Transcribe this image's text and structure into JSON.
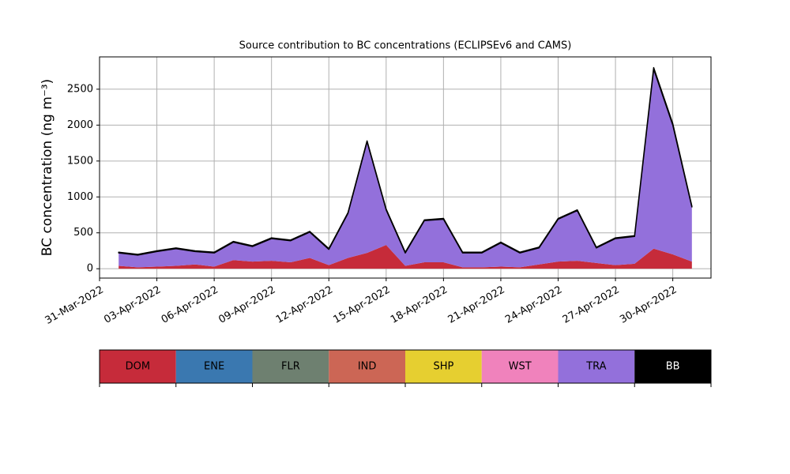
{
  "chart_data": {
    "type": "stacked_area",
    "title": "Source contribution to BC concentrations (ECLIPSEv6 and CAMS)",
    "y_label": "BC concentration (ng m⁻³)",
    "x": [
      "2022-04-01",
      "2022-04-02",
      "2022-04-03",
      "2022-04-04",
      "2022-04-05",
      "2022-04-06",
      "2022-04-07",
      "2022-04-08",
      "2022-04-09",
      "2022-04-10",
      "2022-04-11",
      "2022-04-12",
      "2022-04-13",
      "2022-04-14",
      "2022-04-15",
      "2022-04-16",
      "2022-04-17",
      "2022-04-18",
      "2022-04-19",
      "2022-04-20",
      "2022-04-21",
      "2022-04-22",
      "2022-04-23",
      "2022-04-24",
      "2022-04-25",
      "2022-04-26",
      "2022-04-27",
      "2022-04-28",
      "2022-04-29",
      "2022-04-30",
      "2022-05-01"
    ],
    "series": [
      {
        "name": "DOM",
        "color": "#c62b3a",
        "values": [
          40,
          20,
          30,
          40,
          60,
          30,
          120,
          100,
          110,
          90,
          150,
          50,
          150,
          220,
          330,
          40,
          90,
          90,
          20,
          20,
          30,
          20,
          60,
          100,
          110,
          80,
          50,
          70,
          280,
          200,
          100
        ]
      },
      {
        "name": "ENE",
        "color": "#3a78b0",
        "values": [
          0,
          0,
          0,
          0,
          0,
          0,
          0,
          0,
          0,
          0,
          0,
          0,
          0,
          0,
          0,
          0,
          0,
          0,
          0,
          0,
          0,
          0,
          0,
          0,
          0,
          0,
          0,
          0,
          0,
          0,
          0
        ]
      },
      {
        "name": "FLR",
        "color": "#6e8070",
        "values": [
          0,
          0,
          0,
          0,
          0,
          0,
          0,
          0,
          0,
          0,
          0,
          0,
          0,
          0,
          0,
          0,
          0,
          0,
          0,
          0,
          0,
          0,
          0,
          0,
          0,
          0,
          0,
          0,
          0,
          0,
          0
        ]
      },
      {
        "name": "IND",
        "color": "#cc6655",
        "values": [
          0,
          0,
          0,
          0,
          0,
          0,
          0,
          0,
          0,
          0,
          0,
          0,
          0,
          0,
          0,
          0,
          0,
          0,
          0,
          0,
          0,
          0,
          0,
          0,
          0,
          0,
          0,
          0,
          0,
          0,
          0
        ]
      },
      {
        "name": "SHP",
        "color": "#e6cf30",
        "values": [
          0,
          0,
          0,
          0,
          0,
          0,
          0,
          0,
          0,
          0,
          0,
          0,
          0,
          0,
          0,
          0,
          0,
          0,
          0,
          0,
          0,
          0,
          0,
          0,
          0,
          0,
          0,
          0,
          0,
          0,
          0
        ]
      },
      {
        "name": "WST",
        "color": "#f082bc",
        "values": [
          0,
          0,
          0,
          0,
          0,
          0,
          0,
          0,
          0,
          0,
          0,
          0,
          0,
          0,
          0,
          0,
          0,
          0,
          0,
          0,
          0,
          0,
          0,
          0,
          0,
          0,
          0,
          0,
          0,
          0,
          0
        ]
      },
      {
        "name": "TRA",
        "color": "#9370db",
        "values": [
          180,
          170,
          210,
          240,
          180,
          190,
          250,
          210,
          310,
          300,
          360,
          220,
          620,
          1550,
          490,
          180,
          580,
          600,
          200,
          200,
          330,
          200,
          230,
          590,
          700,
          210,
          370,
          380,
          2500,
          1800,
          760
        ]
      },
      {
        "name": "BB",
        "color": "#000000",
        "values": [
          10,
          10,
          10,
          10,
          10,
          10,
          10,
          10,
          10,
          10,
          10,
          10,
          10,
          10,
          10,
          10,
          10,
          10,
          10,
          10,
          10,
          10,
          10,
          10,
          10,
          10,
          10,
          10,
          20,
          20,
          10
        ]
      }
    ],
    "xlim": [
      "2022-03-31",
      "2022-05-02"
    ],
    "xticks": [
      {
        "value": "2022-03-31",
        "label": "31-Mar-2022"
      },
      {
        "value": "2022-04-03",
        "label": "03-Apr-2022"
      },
      {
        "value": "2022-04-06",
        "label": "06-Apr-2022"
      },
      {
        "value": "2022-04-09",
        "label": "09-Apr-2022"
      },
      {
        "value": "2022-04-12",
        "label": "12-Apr-2022"
      },
      {
        "value": "2022-04-15",
        "label": "15-Apr-2022"
      },
      {
        "value": "2022-04-18",
        "label": "18-Apr-2022"
      },
      {
        "value": "2022-04-21",
        "label": "21-Apr-2022"
      },
      {
        "value": "2022-04-24",
        "label": "24-Apr-2022"
      },
      {
        "value": "2022-04-27",
        "label": "27-Apr-2022"
      },
      {
        "value": "2022-04-30",
        "label": "30-Apr-2022"
      }
    ],
    "ylim": [
      -130,
      2950
    ],
    "yticks": [
      0,
      500,
      1000,
      1500,
      2000,
      2500
    ],
    "grid": true
  }
}
